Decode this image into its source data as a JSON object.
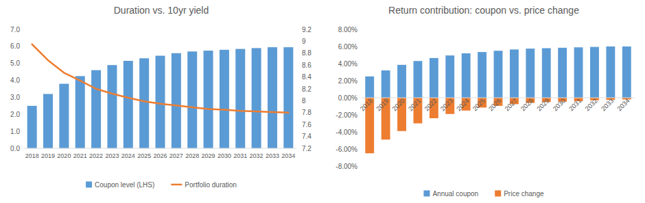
{
  "chart_data": [
    {
      "type": "bar",
      "title": "Duration vs. 10yr yield",
      "categories": [
        "2018",
        "2019",
        "2020",
        "2021",
        "2022",
        "2023",
        "2024",
        "2025",
        "2026",
        "2027",
        "2028",
        "2029",
        "2030",
        "2031",
        "2032",
        "2033",
        "2034"
      ],
      "series": [
        {
          "name": "Coupon level (LHS)",
          "type": "bar",
          "color": "#5b9bd5",
          "values": [
            2.5,
            3.2,
            3.8,
            4.25,
            4.6,
            4.9,
            5.15,
            5.3,
            5.45,
            5.6,
            5.7,
            5.75,
            5.8,
            5.85,
            5.9,
            5.95,
            5.95
          ]
        },
        {
          "name": "Portfolio duration",
          "type": "line",
          "axis": "y2",
          "color": "#ed7d31",
          "values": [
            8.95,
            8.68,
            8.47,
            8.34,
            8.2,
            8.12,
            8.05,
            7.99,
            7.95,
            7.92,
            7.89,
            7.86,
            7.85,
            7.83,
            7.82,
            7.81,
            7.8
          ]
        }
      ],
      "ylim": [
        0,
        7
      ],
      "yticks": [
        {
          "value": 0,
          "label": "0.0"
        },
        {
          "value": 1,
          "label": "1.0"
        },
        {
          "value": 2,
          "label": "2.0"
        },
        {
          "value": 3,
          "label": "3.0"
        },
        {
          "value": 4,
          "label": "4.0"
        },
        {
          "value": 5,
          "label": "5.0"
        },
        {
          "value": 6,
          "label": "6.0"
        },
        {
          "value": 7,
          "label": "7.0"
        }
      ],
      "y2lim": [
        7.2,
        9.2
      ],
      "y2ticks": [
        7.2,
        7.4,
        7.6,
        7.8,
        8,
        8.2,
        8.4,
        8.6,
        8.8,
        9,
        9.2
      ],
      "grid": false,
      "legend": "bottom"
    },
    {
      "type": "bar",
      "title": "Return contribution: coupon vs. price change",
      "stacked": true,
      "categories": [
        "2018",
        "2019",
        "2020",
        "2021",
        "2022",
        "2023",
        "2024",
        "2025",
        "2026",
        "2027",
        "2028",
        "2029",
        "2030",
        "2031",
        "2032",
        "2033",
        "2034"
      ],
      "series": [
        {
          "name": "Annual coupon",
          "color": "#5b9bd5",
          "values": [
            2.5,
            3.2,
            3.85,
            4.3,
            4.65,
            4.95,
            5.2,
            5.35,
            5.5,
            5.65,
            5.75,
            5.8,
            5.85,
            5.9,
            5.95,
            6.0,
            6.0
          ]
        },
        {
          "name": "Price change",
          "color": "#ed7d31",
          "values": [
            -6.5,
            -4.9,
            -3.9,
            -3.0,
            -2.4,
            -1.9,
            -1.5,
            -1.15,
            -0.95,
            -0.75,
            -0.6,
            -0.5,
            -0.45,
            -0.4,
            -0.3,
            -0.25,
            -0.2
          ]
        }
      ],
      "ylim": [
        -8,
        8
      ],
      "yticks": [
        {
          "value": -8,
          "label": "-8.00%"
        },
        {
          "value": -6,
          "label": "-6.00%"
        },
        {
          "value": -4,
          "label": "-4.00%"
        },
        {
          "value": -2,
          "label": "-2.00%"
        },
        {
          "value": 0,
          "label": "0.00%"
        },
        {
          "value": 2,
          "label": "2.00%"
        },
        {
          "value": 4,
          "label": "4.00%"
        },
        {
          "value": 6,
          "label": "6.00%"
        },
        {
          "value": 8,
          "label": "8.00%"
        }
      ],
      "grid": false,
      "legend": "bottom"
    }
  ]
}
